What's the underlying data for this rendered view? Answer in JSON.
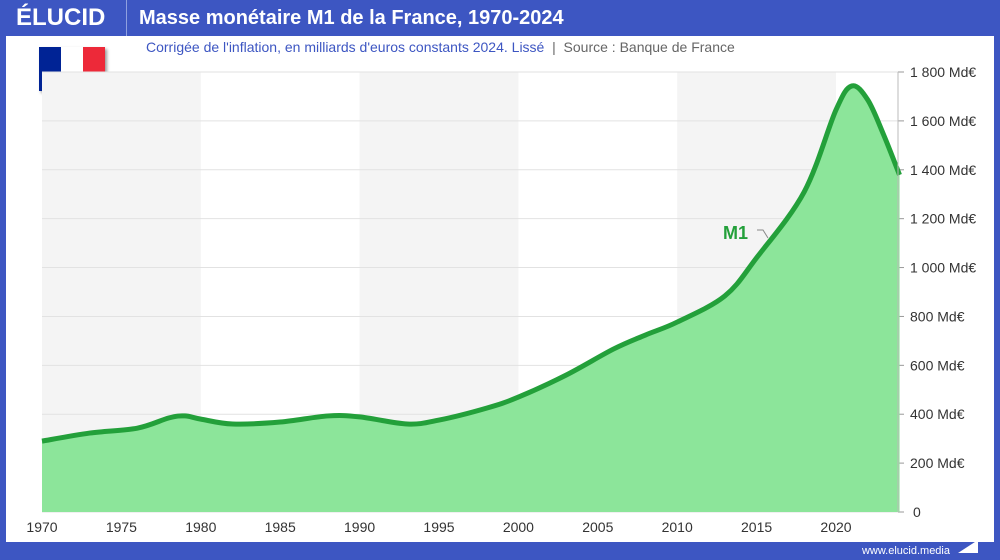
{
  "header": {
    "logo": "ÉLUCID",
    "title": "Masse monétaire M1 de la France, 1970-2024"
  },
  "subtitle": {
    "text": "Corrigée de l'inflation, en milliards d'euros constants 2024. Lissé",
    "separator": "|",
    "source": "Source : Banque de France"
  },
  "flag": {
    "colors": [
      "#002395",
      "#ffffff",
      "#ed2939"
    ]
  },
  "footer": {
    "url": "www.elucid.media"
  },
  "chart_data": {
    "type": "area",
    "title": "Masse monétaire M1 de la France, 1970-2024",
    "xlim": [
      1970,
      2024
    ],
    "ylim": [
      0,
      1800
    ],
    "x_ticks": [
      "1970",
      "1975",
      "1980",
      "1985",
      "1990",
      "1995",
      "2000",
      "2005",
      "2010",
      "2015",
      "2020"
    ],
    "y_ticks": [
      "0",
      "200 Md€",
      "400 Md€",
      "600 Md€",
      "800 Md€",
      "1 000 Md€",
      "1 200 Md€",
      "1 400 Md€",
      "1 600 Md€",
      "1 800 Md€"
    ],
    "grid": true,
    "colors": {
      "line": "#23a03a",
      "fill": "#8ce59a",
      "band": "#f4f4f4"
    },
    "series": [
      {
        "name": "M1",
        "x": [
          1970,
          1973,
          1976,
          1978,
          1979,
          1980,
          1982,
          1985,
          1988,
          1990,
          1993,
          1995,
          1998,
          2000,
          2003,
          2006,
          2008,
          2010,
          2013,
          2015,
          2018,
          2020,
          2021,
          2022,
          2023,
          2024
        ],
        "values": [
          290,
          323,
          343,
          385,
          393,
          380,
          360,
          368,
          393,
          389,
          360,
          376,
          425,
          470,
          560,
          667,
          724,
          777,
          884,
          1040,
          1310,
          1645,
          1743,
          1686,
          1543,
          1379
        ]
      }
    ]
  }
}
